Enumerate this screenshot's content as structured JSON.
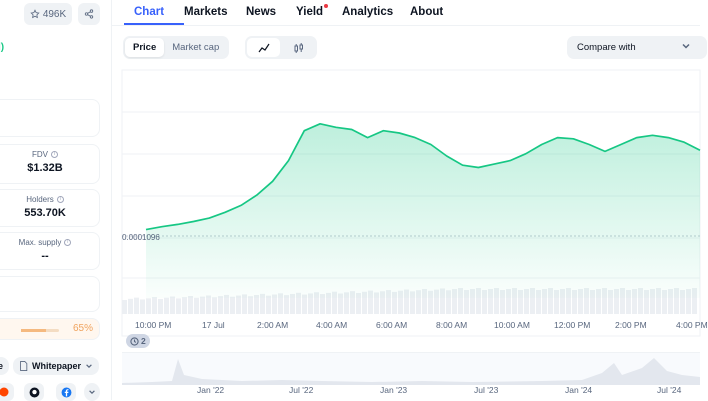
{
  "left_panel": {
    "watchlist_count": "496K",
    "green_fragment": "l)",
    "stats": [
      {
        "label": "FDV",
        "value": "$1.32B"
      },
      {
        "label": "Holders",
        "value": "553.70K"
      },
      {
        "label": "Max. supply",
        "value": "--"
      }
    ],
    "progress_percent": "65%",
    "progress_fraction": 0.65,
    "chips": {
      "website_fragment": "e",
      "whitepaper": "Whitepaper"
    }
  },
  "tabs": [
    "Chart",
    "Markets",
    "News",
    "Yield",
    "Analytics",
    "About"
  ],
  "active_tab": "Chart",
  "controls": {
    "price": "Price",
    "market_cap": "Market cap",
    "compare_with": "Compare with"
  },
  "chart_data": {
    "type": "area",
    "reference_price_label": "0.0001096",
    "x_tick_labels": [
      "10:00 PM",
      "17 Jul",
      "2:00 AM",
      "4:00 AM",
      "6:00 AM",
      "8:00 AM",
      "10:00 AM",
      "12:00 PM",
      "2:00 PM",
      "4:00 PM"
    ],
    "series": [
      {
        "values": [
          0.0001096,
          0.00010985,
          0.00011005,
          0.0001103,
          0.0001106,
          0.0001111,
          0.0001117,
          0.0001126,
          0.0001138,
          0.0001156,
          0.0001182,
          0.0001188,
          0.0001185,
          0.0001183,
          0.0001176,
          0.0001182,
          0.000118,
          0.0001176,
          0.000117,
          0.000116,
          0.0001152,
          0.000115,
          0.0001153,
          0.0001156,
          0.0001162,
          0.000117,
          0.0001176,
          0.0001175,
          0.000117,
          0.0001164,
          0.000117,
          0.0001176,
          0.0001178,
          0.0001176,
          0.0001172,
          0.0001165
        ]
      }
    ],
    "minimap_tick_labels": [
      "Jan '22",
      "Jul '22",
      "Jan '23",
      "Jul '23",
      "Jan '24",
      "Jul '24"
    ],
    "zoom_badge": "2",
    "colors": {
      "line": "#16c784",
      "fill_top": "#16c784",
      "grid": "#eff2f5"
    }
  }
}
